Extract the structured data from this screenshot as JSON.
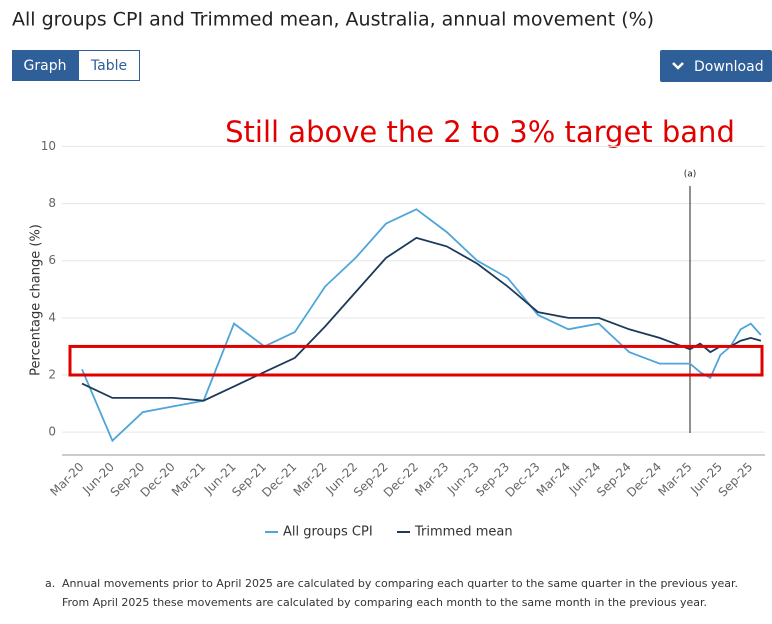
{
  "header": {
    "title": "All groups CPI and Trimmed mean, Australia, annual movement (%)",
    "tabs": [
      "Graph",
      "Table"
    ],
    "download": "Download"
  },
  "chart_data": {
    "type": "line",
    "annotation": "Still above the 2 to 3% target band",
    "y_label": "Percentage change (%)",
    "categories": [
      "Mar-20",
      "Jun-20",
      "Sep-20",
      "Dec-20",
      "Mar-21",
      "Jun-21",
      "Sep-21",
      "Dec-21",
      "Mar-22",
      "Jun-22",
      "Sep-22",
      "Dec-22",
      "Mar-23",
      "Jun-23",
      "Sep-23",
      "Dec-23",
      "Mar-24",
      "Jun-24",
      "Sep-24",
      "Dec-24",
      "Mar-25",
      null,
      null,
      "Jun-25",
      null,
      null,
      "Sep-25",
      null
    ],
    "series": [
      {
        "name": "All groups CPI",
        "color": "#4ea5d9",
        "values": [
          2.2,
          -0.3,
          0.7,
          0.9,
          1.1,
          3.8,
          3.0,
          3.5,
          5.1,
          6.1,
          7.3,
          7.8,
          7.0,
          6.0,
          5.4,
          4.1,
          3.6,
          3.8,
          2.8,
          2.4,
          2.4,
          2.1,
          1.9,
          2.7,
          3.0,
          3.6,
          3.8,
          3.4
        ]
      },
      {
        "name": "Trimmed mean",
        "color": "#1b3a5c",
        "values": [
          1.7,
          1.2,
          1.2,
          1.2,
          1.1,
          1.6,
          2.1,
          2.6,
          3.7,
          4.9,
          6.1,
          6.8,
          6.5,
          5.9,
          5.1,
          4.2,
          4.0,
          4.0,
          3.6,
          3.3,
          2.9,
          3.1,
          2.8,
          3.0,
          3.0,
          3.2,
          3.3,
          3.2
        ]
      }
    ],
    "ylim": [
      -0.8,
      10.4
    ],
    "yticks": [
      0,
      2,
      4,
      6,
      8,
      10
    ],
    "grid": true,
    "band": {
      "from": 2,
      "to": 3,
      "color": "#e00000"
    },
    "marker": {
      "label": "(a)",
      "category": "Mar-25"
    },
    "legend": "bottom"
  },
  "footnote": {
    "marker": "a.",
    "lines": [
      "Annual movements prior to April 2025 are calculated by comparing each quarter to the same quarter in the previous year.",
      "From April 2025 these movements are calculated by comparing each month to the same month in the previous year."
    ]
  }
}
